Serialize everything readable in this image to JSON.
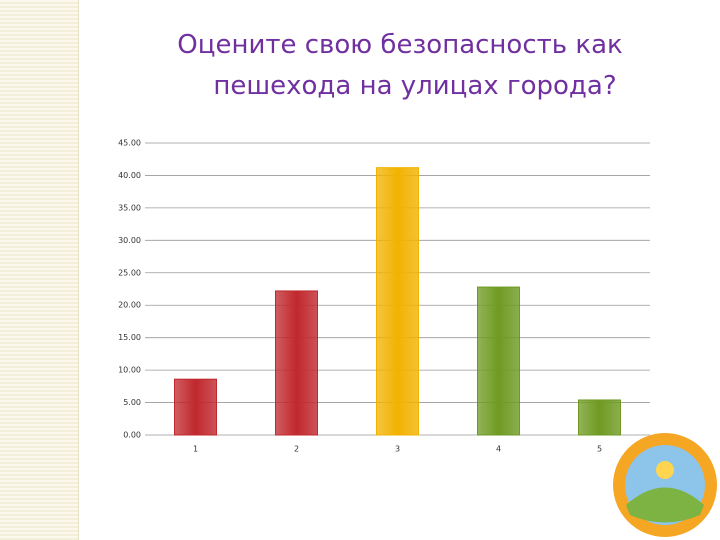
{
  "title": [
    "Оцените свою безопасность  как",
    "пешехода  на улицах города?"
  ],
  "chart_data": {
    "type": "bar",
    "categories": [
      "1",
      "2",
      "3",
      "4",
      "5"
    ],
    "values": [
      8.6,
      22.2,
      41.2,
      22.8,
      5.4
    ],
    "colors": [
      "#c0282d",
      "#c0282d",
      "#f2b200",
      "#6f9a22",
      "#6f9a22"
    ],
    "ylim": [
      0,
      45
    ],
    "yticks": [
      {
        "value": 0,
        "label": "0.00"
      },
      {
        "value": 5,
        "label": "5.00"
      },
      {
        "value": 10,
        "label": "10.00"
      },
      {
        "value": 15,
        "label": "15.00"
      },
      {
        "value": 20,
        "label": "20.00"
      },
      {
        "value": 25,
        "label": "25.00"
      },
      {
        "value": 30,
        "label": "30.00"
      },
      {
        "value": 35,
        "label": "35.00"
      },
      {
        "value": 40,
        "label": "40.00"
      },
      {
        "value": 45,
        "label": "45.00"
      }
    ],
    "grid": true
  }
}
